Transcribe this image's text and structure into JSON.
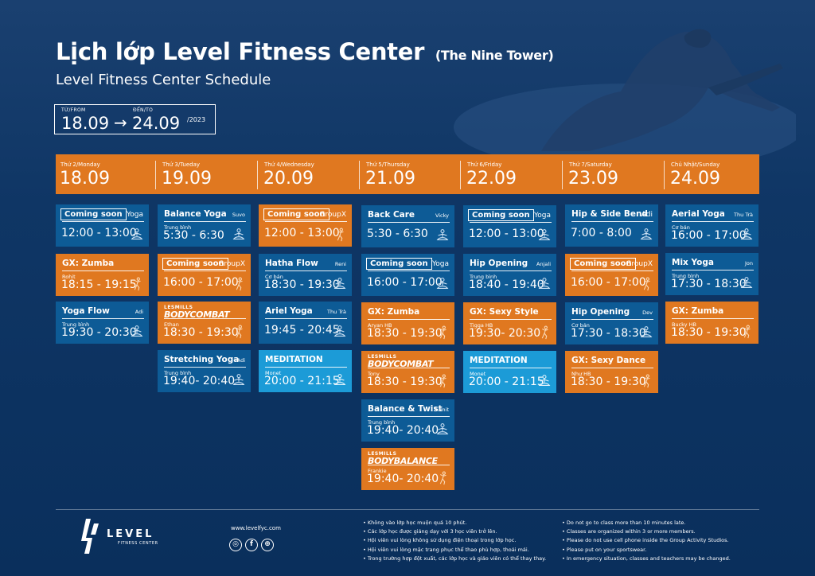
{
  "header": {
    "title": "Lịch lớp Level Fitness Center",
    "title_paren": "(The Nine Tower)",
    "subtitle": "Level Fitness Center Schedule"
  },
  "date_range": {
    "from_label": "TỪ/FROM",
    "to_label": "ĐẾN/TO",
    "from": "18.09",
    "arrow": "→",
    "to": "24.09",
    "year": "/2023"
  },
  "days": [
    {
      "name": "Thứ 2/Monday",
      "date": "18.09"
    },
    {
      "name": "Thứ 3/Tueday",
      "date": "19.09"
    },
    {
      "name": "Thứ 4/Wednesday",
      "date": "20.09"
    },
    {
      "name": "Thứ 5/Thursday",
      "date": "21.09"
    },
    {
      "name": "Thứ 6/Friday",
      "date": "22.09"
    },
    {
      "name": "Thứ 7/Saturday",
      "date": "23.09"
    },
    {
      "name": "Chủ Nhật/Sunday",
      "date": "24.09"
    }
  ],
  "classes": {
    "mon": [
      {
        "name": "Coming soon",
        "trainer": "Yoga",
        "level": "",
        "time": "12:00 - 13:00"
      },
      {
        "name": "GX: Zumba",
        "trainer": "",
        "level": "Rohit",
        "time": "18:15 - 19:15"
      },
      {
        "name": "Yoga Flow",
        "trainer": "Adi",
        "level": "Trung bình",
        "time": "19:30 - 20:30"
      }
    ],
    "tue": [
      {
        "name": "Balance Yoga",
        "trainer": "Suvo",
        "level": "Trung bình",
        "time": "5:30 - 6:30"
      },
      {
        "name": "Coming soon",
        "trainer": "GroupX",
        "level": "",
        "time": "16:00 - 17:00"
      },
      {
        "les": "LESMILLS",
        "name": "BODYCOMBAT",
        "level": "Ethan",
        "time": "18:30 - 19:30"
      },
      {
        "name": "Stretching Yoga",
        "trainer": "Adi",
        "level": "Trung bình",
        "time": "19:40- 20:40"
      }
    ],
    "wed": [
      {
        "name": "Coming soon",
        "trainer": "GroupX",
        "level": "",
        "time": "12:00 - 13:00"
      },
      {
        "name": "Hatha Flow",
        "trainer": "Reni",
        "level": "Cơ bản",
        "time": "18:30 - 19:30"
      },
      {
        "name": "Ariel Yoga",
        "trainer": "Thu Trà",
        "level": "",
        "time": "19:45 - 20:45"
      },
      {
        "name": "MEDITATION",
        "trainer": "",
        "level": "Monet",
        "time": "20:00 - 21:15"
      }
    ],
    "thu": [
      {
        "name": "Back Care",
        "trainer": "Vicky",
        "level": "",
        "time": "5:30 - 6:30"
      },
      {
        "name": "Coming soon",
        "trainer": "Yoga",
        "level": "",
        "time": "16:00 - 17:00"
      },
      {
        "name": "GX: Zumba",
        "trainer": "",
        "level": "Aryan HB",
        "time": "18:30 - 19:30"
      },
      {
        "les": "LESMILLS",
        "name": "BODYCOMBAT",
        "level": "Tony",
        "time": "18:30 - 19:30"
      },
      {
        "name": "Balance & Twist",
        "trainer": "Sumit",
        "level": "Trung bình",
        "time": "19:40- 20:40"
      },
      {
        "les": "LESMILLS",
        "name": "BODYBALANCE",
        "level": "Frankie",
        "time": "19:40- 20:40"
      }
    ],
    "fri": [
      {
        "name": "Coming soon",
        "trainer": "Yoga",
        "level": "",
        "time": "12:00 - 13:00"
      },
      {
        "name": "Hip Opening",
        "trainer": "Anjali",
        "level": "Trung bình",
        "time": "18:40 - 19:40"
      },
      {
        "name": "GX: Sexy Style",
        "trainer": "",
        "level": "Tigga HB",
        "time": "19:30- 20:30"
      },
      {
        "name": "MEDITATION",
        "trainer": "",
        "level": "Monet",
        "time": "20:00 - 21:15"
      }
    ],
    "sat": [
      {
        "name": "Hip & Side Bend",
        "trainer": "Adi",
        "level": "",
        "time": "7:00 - 8:00"
      },
      {
        "name": "Coming soon",
        "trainer": "GroupX",
        "level": "",
        "time": "16:00 - 17:00"
      },
      {
        "name": "Hip Opening",
        "trainer": "Dev",
        "level": "Cơ bản",
        "time": "17:30 - 18:30"
      },
      {
        "name": "GX: Sexy Dance",
        "trainer": "",
        "level": "Như HB",
        "time": "18:30 - 19:30"
      }
    ],
    "sun": [
      {
        "name": "Aerial Yoga",
        "trainer": "Thu Trà",
        "level": "Cơ bản",
        "time": "16:00 - 17:00"
      },
      {
        "name": "Mix Yoga",
        "trainer": "Jon",
        "level": "Trung bình",
        "time": "17:30 - 18:30"
      },
      {
        "name": "GX: Zumba",
        "trainer": "",
        "level": "Bucky HB",
        "time": "18:30 - 19:30"
      }
    ]
  },
  "footer": {
    "logo_word": "LEVEL",
    "logo_tag": "FITNESS CENTER",
    "website": "www.levelfyc.com",
    "social": [
      "instagram-icon",
      "facebook-icon",
      "web-icon"
    ],
    "notes_vi": [
      "Không vào lớp học muộn quá 10 phút.",
      "Các lớp học được giảng dạy với 3 học viên trở lên.",
      "Hội viên vui lòng không sử dụng điện thoại trong lớp học.",
      "Hội viên vui lòng mặc trang phục thể thao phù hợp, thoải mái.",
      "Trong trường hợp đột xuất, các lớp học và giáo viên có thể thay thay."
    ],
    "notes_en": [
      "Do not go to class more than 10 minutes late.",
      "Classes are organized within 3 or more members.",
      "Please do not use cell phone inside the Group Activity Studios.",
      "Please put on your sportswear.",
      "In emergency situation, classes and teachers may be changed."
    ]
  },
  "colors": {
    "background": "#0b3261",
    "orange": "#e07820",
    "blue_card": "#0d5b96",
    "cyan_card": "#1c9bd7"
  }
}
